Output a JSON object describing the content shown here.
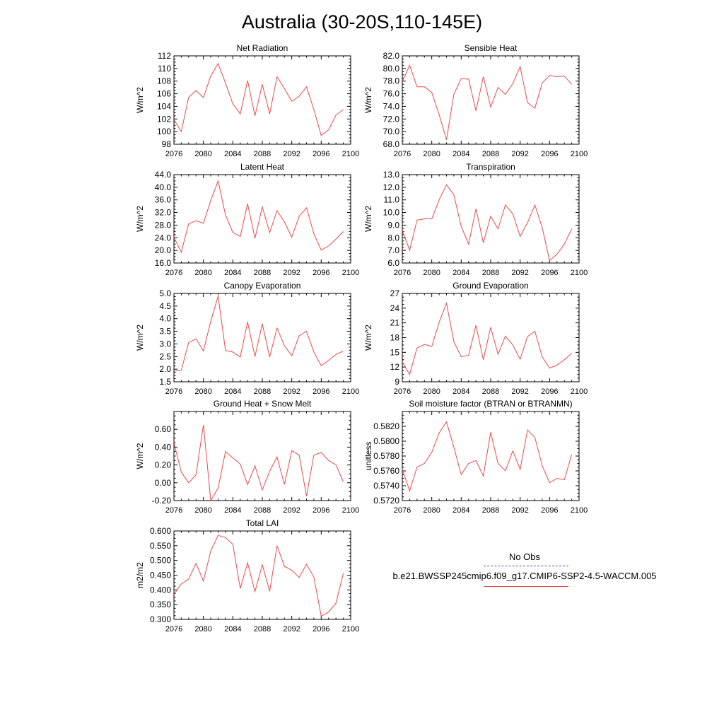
{
  "figure_title": "Australia (30-20S,110-145E)",
  "legend": {
    "obs_label": "No Obs",
    "model_label": "b.e21.BWSSP245cmip6.f09_g17.CMIP6-SSP2-4.5-WACCM.005",
    "obs_color": "#4a4aa8",
    "model_color": "#e84a4a"
  },
  "chart_data": [
    {
      "type": "line",
      "title": "Net Radiation",
      "ylabel": "W/m^2",
      "xlim": [
        2076,
        2100
      ],
      "ylim": [
        98,
        112
      ],
      "xticks": [
        "2076",
        "2080",
        "2084",
        "2088",
        "2092",
        "2096",
        "2100"
      ],
      "yticks": [
        "98",
        "100",
        "102",
        "104",
        "106",
        "108",
        "110",
        "112"
      ],
      "x": [
        2076,
        2077,
        2078,
        2079,
        2080,
        2081,
        2082,
        2083,
        2084,
        2085,
        2086,
        2087,
        2088,
        2089,
        2090,
        2091,
        2092,
        2093,
        2094,
        2095,
        2096,
        2097,
        2098,
        2099
      ],
      "series": [
        {
          "values": [
            101.9,
            100.0,
            105.4,
            106.5,
            105.4,
            108.8,
            110.8,
            107.7,
            104.4,
            102.8,
            108.1,
            102.5,
            107.5,
            102.8,
            108.7,
            106.8,
            104.8,
            105.6,
            107.1,
            103.5,
            99.4,
            100.3,
            102.6,
            103.5
          ]
        }
      ]
    },
    {
      "type": "line",
      "title": "Sensible Heat",
      "ylabel": "W/m^2",
      "xlim": [
        2076,
        2100
      ],
      "ylim": [
        68,
        82
      ],
      "xticks": [
        "2076",
        "2080",
        "2084",
        "2088",
        "2092",
        "2096",
        "2100"
      ],
      "yticks": [
        "68.0",
        "70.0",
        "72.0",
        "74.0",
        "76.0",
        "78.0",
        "80.0",
        "82.0"
      ],
      "x": [
        2076,
        2077,
        2078,
        2079,
        2080,
        2081,
        2082,
        2083,
        2084,
        2085,
        2086,
        2087,
        2088,
        2089,
        2090,
        2091,
        2092,
        2093,
        2094,
        2095,
        2096,
        2097,
        2098,
        2099
      ],
      "series": [
        {
          "values": [
            77.9,
            80.5,
            77.1,
            77.1,
            76.2,
            72.7,
            68.7,
            75.9,
            78.4,
            78.3,
            73.3,
            78.7,
            73.9,
            77.0,
            75.9,
            77.6,
            80.3,
            74.6,
            73.7,
            77.7,
            78.9,
            78.7,
            78.8,
            77.5
          ]
        }
      ]
    },
    {
      "type": "line",
      "title": "Latent Heat",
      "ylabel": "W/m^2",
      "xlim": [
        2076,
        2100
      ],
      "ylim": [
        16,
        44
      ],
      "xticks": [
        "2076",
        "2080",
        "2084",
        "2088",
        "2092",
        "2096",
        "2100"
      ],
      "yticks": [
        "16.0",
        "20.0",
        "24.0",
        "28.0",
        "32.0",
        "36.0",
        "40.0",
        "44.0"
      ],
      "x": [
        2076,
        2077,
        2078,
        2079,
        2080,
        2081,
        2082,
        2083,
        2084,
        2085,
        2086,
        2087,
        2088,
        2089,
        2090,
        2091,
        2092,
        2093,
        2094,
        2095,
        2096,
        2097,
        2098,
        2099
      ],
      "series": [
        {
          "values": [
            24.1,
            19.4,
            28.4,
            29.4,
            28.6,
            35.8,
            42.0,
            31.2,
            25.7,
            24.4,
            34.8,
            23.8,
            33.8,
            25.6,
            32.6,
            29.0,
            24.2,
            30.8,
            33.5,
            25.3,
            20.1,
            21.4,
            23.6,
            26.0
          ]
        }
      ]
    },
    {
      "type": "line",
      "title": "Transpiration",
      "ylabel": "W/m^2",
      "xlim": [
        2076,
        2100
      ],
      "ylim": [
        6,
        13
      ],
      "xticks": [
        "2076",
        "2080",
        "2084",
        "2088",
        "2092",
        "2096",
        "2100"
      ],
      "yticks": [
        "6.0",
        "7.0",
        "8.0",
        "9.0",
        "10.0",
        "11.0",
        "12.0",
        "13.0"
      ],
      "x": [
        2076,
        2077,
        2078,
        2079,
        2080,
        2081,
        2082,
        2083,
        2084,
        2085,
        2086,
        2087,
        2088,
        2089,
        2090,
        2091,
        2092,
        2093,
        2094,
        2095,
        2096,
        2097,
        2098,
        2099
      ],
      "series": [
        {
          "values": [
            8.6,
            7.0,
            9.4,
            9.5,
            9.5,
            11.0,
            12.2,
            11.4,
            8.9,
            7.5,
            10.3,
            7.6,
            9.7,
            8.7,
            10.6,
            9.9,
            8.1,
            9.2,
            10.6,
            8.8,
            6.2,
            6.7,
            7.5,
            8.7
          ]
        }
      ]
    },
    {
      "type": "line",
      "title": "Canopy Evaporation",
      "ylabel": "W/m^2",
      "xlim": [
        2076,
        2100
      ],
      "ylim": [
        1.5,
        5.0
      ],
      "xticks": [
        "2076",
        "2080",
        "2084",
        "2088",
        "2092",
        "2096",
        "2100"
      ],
      "yticks": [
        "1.5",
        "2.0",
        "2.5",
        "3.0",
        "3.5",
        "4.0",
        "4.5",
        "5.0"
      ],
      "x": [
        2076,
        2077,
        2078,
        2079,
        2080,
        2081,
        2082,
        2083,
        2084,
        2085,
        2086,
        2087,
        2088,
        2089,
        2090,
        2091,
        2092,
        2093,
        2094,
        2095,
        2096,
        2097,
        2098,
        2099
      ],
      "series": [
        {
          "values": [
            1.92,
            1.96,
            3.05,
            3.2,
            2.72,
            3.9,
            4.9,
            2.74,
            2.68,
            2.48,
            3.87,
            2.5,
            3.8,
            2.48,
            3.63,
            2.93,
            2.53,
            3.32,
            3.5,
            2.68,
            2.14,
            2.35,
            2.58,
            2.72
          ]
        }
      ]
    },
    {
      "type": "line",
      "title": "Ground Evaporation",
      "ylabel": "W/m^2",
      "xlim": [
        2076,
        2100
      ],
      "ylim": [
        9,
        27
      ],
      "xticks": [
        "2076",
        "2080",
        "2084",
        "2088",
        "2092",
        "2096",
        "2100"
      ],
      "yticks": [
        "9",
        "12",
        "15",
        "18",
        "21",
        "24",
        "27"
      ],
      "x": [
        2076,
        2077,
        2078,
        2079,
        2080,
        2081,
        2082,
        2083,
        2084,
        2085,
        2086,
        2087,
        2088,
        2089,
        2090,
        2091,
        2092,
        2093,
        2094,
        2095,
        2096,
        2097,
        2098,
        2099
      ],
      "series": [
        {
          "values": [
            13.0,
            10.5,
            15.9,
            16.6,
            16.2,
            21.1,
            25.0,
            17.2,
            14.1,
            14.4,
            20.5,
            13.5,
            20.1,
            14.6,
            18.3,
            16.5,
            13.6,
            18.2,
            19.3,
            14.1,
            11.8,
            12.4,
            13.5,
            14.8
          ]
        }
      ]
    },
    {
      "type": "line",
      "title": "Ground Heat + Snow Melt",
      "ylabel": "W/m^2",
      "xlim": [
        2076,
        2100
      ],
      "ylim": [
        -0.2,
        0.8
      ],
      "xticks": [
        "2076",
        "2080",
        "2084",
        "2088",
        "2092",
        "2096",
        "2100"
      ],
      "yticks": [
        "-0.20",
        "0.00",
        "0.20",
        "0.40",
        "0.60"
      ],
      "x": [
        2076,
        2077,
        2078,
        2079,
        2080,
        2081,
        2082,
        2083,
        2084,
        2085,
        2086,
        2087,
        2088,
        2089,
        2090,
        2091,
        2092,
        2093,
        2094,
        2095,
        2096,
        2097,
        2098,
        2099
      ],
      "series": [
        {
          "values": [
            0.45,
            0.12,
            0.0,
            0.09,
            0.65,
            -0.2,
            -0.06,
            0.35,
            0.28,
            0.21,
            -0.02,
            0.19,
            -0.08,
            0.13,
            0.29,
            -0.02,
            0.36,
            0.31,
            -0.15,
            0.31,
            0.34,
            0.25,
            0.2,
            0.01
          ]
        }
      ]
    },
    {
      "type": "line",
      "title": "Soil moisture factor (BTRAN or BTRANMN)",
      "ylabel": "unitless",
      "xlim": [
        2076,
        2100
      ],
      "ylim": [
        0.572,
        0.584
      ],
      "xticks": [
        "2076",
        "2080",
        "2084",
        "2088",
        "2092",
        "2096",
        "2100"
      ],
      "yticks": [
        "0.5720",
        "0.5740",
        "0.5760",
        "0.5780",
        "0.5800",
        "0.5820"
      ],
      "x": [
        2076,
        2077,
        2078,
        2079,
        2080,
        2081,
        2082,
        2083,
        2084,
        2085,
        2086,
        2087,
        2088,
        2089,
        2090,
        2091,
        2092,
        2093,
        2094,
        2095,
        2096,
        2097,
        2098,
        2099
      ],
      "series": [
        {
          "values": [
            0.5762,
            0.5733,
            0.5765,
            0.577,
            0.5785,
            0.5811,
            0.5826,
            0.5792,
            0.5755,
            0.577,
            0.5774,
            0.5753,
            0.5812,
            0.577,
            0.576,
            0.5787,
            0.5762,
            0.5815,
            0.5805,
            0.5767,
            0.5744,
            0.575,
            0.5748,
            0.5782
          ]
        }
      ]
    },
    {
      "type": "line",
      "title": "Total LAI",
      "ylabel": "m2/m2",
      "xlim": [
        2076,
        2100
      ],
      "ylim": [
        0.3,
        0.6
      ],
      "xticks": [
        "2076",
        "2080",
        "2084",
        "2088",
        "2092",
        "2096",
        "2100"
      ],
      "yticks": [
        "0.300",
        "0.350",
        "0.400",
        "0.450",
        "0.500",
        "0.550",
        "0.600"
      ],
      "x": [
        2076,
        2077,
        2078,
        2079,
        2080,
        2081,
        2082,
        2083,
        2084,
        2085,
        2086,
        2087,
        2088,
        2089,
        2090,
        2091,
        2092,
        2093,
        2094,
        2095,
        2096,
        2097,
        2098,
        2099
      ],
      "series": [
        {
          "values": [
            0.385,
            0.42,
            0.437,
            0.49,
            0.43,
            0.532,
            0.585,
            0.578,
            0.555,
            0.405,
            0.492,
            0.394,
            0.485,
            0.395,
            0.55,
            0.48,
            0.467,
            0.442,
            0.487,
            0.444,
            0.311,
            0.325,
            0.355,
            0.456
          ]
        }
      ]
    }
  ]
}
